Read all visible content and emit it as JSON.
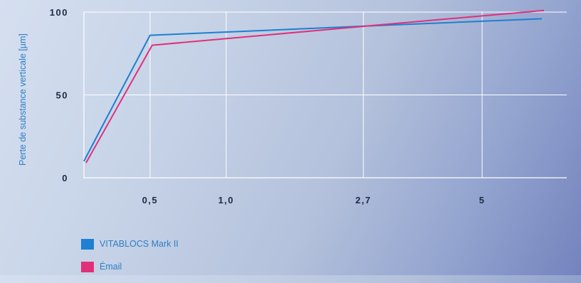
{
  "chart_data": {
    "type": "line",
    "title": "",
    "xlabel": "",
    "ylabel": "Perte de substance verticale [µm]",
    "x_tick_labels": [
      "0,5",
      "1,0",
      "2,7",
      "5"
    ],
    "y_tick_labels": [
      "0",
      "50",
      "100"
    ],
    "ylim": [
      0,
      100
    ],
    "grid": true,
    "legend_position": "bottom-left",
    "series": [
      {
        "name": "VITABLOCS Mark II",
        "color": "#1f7fd0",
        "points": [
          [
            "0",
            10
          ],
          [
            "0,5",
            86
          ],
          [
            "2,7",
            91.5
          ],
          [
            "end",
            96
          ]
        ]
      },
      {
        "name": "Émail",
        "color": "#e0307a",
        "points": [
          [
            "0",
            9
          ],
          [
            "0,5",
            80
          ],
          [
            "2,7",
            91.5
          ],
          [
            "end",
            101
          ]
        ]
      }
    ]
  }
}
